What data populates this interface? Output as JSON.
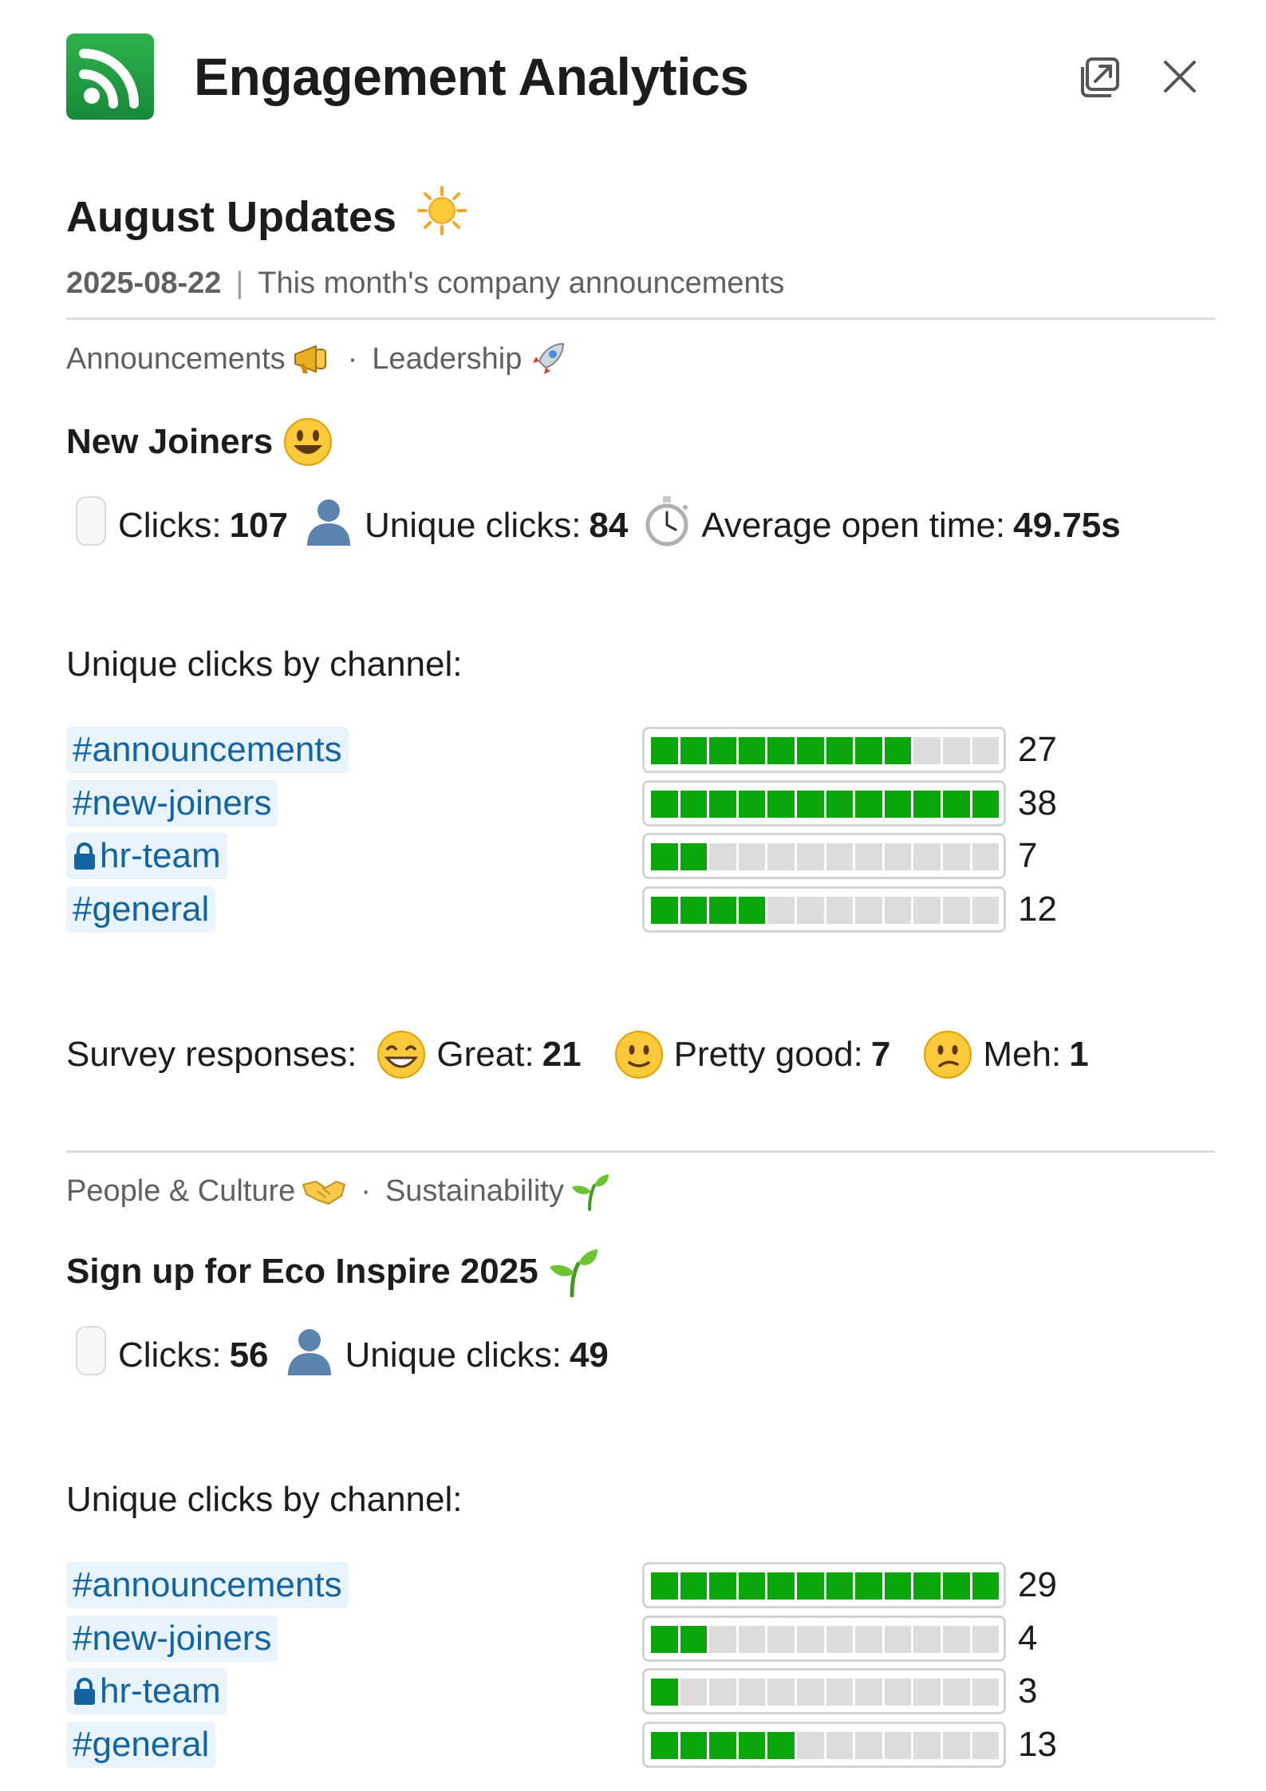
{
  "header": {
    "title": "Engagement Analytics",
    "logo_icon": "rss-feed-icon",
    "popout_icon": "popout-icon",
    "close_icon": "close-icon"
  },
  "section": {
    "title": "August Updates",
    "title_icon": "sun-icon",
    "date": "2025-08-22",
    "separator": "|",
    "subtitle": "This month's company announcements"
  },
  "items": [
    {
      "tags": [
        "Announcements",
        "Leadership"
      ],
      "tag_icons": [
        "megaphone-icon",
        "rocket-icon"
      ],
      "tag_separator": "·",
      "title": "New Joiners",
      "title_icon": "smiley-icon",
      "stats": {
        "clicks_label": "Clicks:",
        "clicks": "107",
        "unique_label": "Unique clicks:",
        "unique": "84",
        "open_label": "Average open time:",
        "open": "49.75s"
      },
      "channels_label": "Unique clicks by channel:",
      "channels": [
        {
          "name": "#announcements",
          "value": "27",
          "fill": 0.71,
          "private": false
        },
        {
          "name": "#new-joiners",
          "value": "38",
          "fill": 1.0,
          "private": false
        },
        {
          "name": "hr-team",
          "value": "7",
          "fill": 0.18,
          "private": true
        },
        {
          "name": "#general",
          "value": "12",
          "fill": 0.32,
          "private": false
        }
      ],
      "survey": {
        "label": "Survey responses:",
        "options": [
          {
            "label": "Great:",
            "count": "21",
            "icon": "grinning-face-icon"
          },
          {
            "label": "Pretty good:",
            "count": "7",
            "icon": "slightly-smiling-face-icon"
          },
          {
            "label": "Meh:",
            "count": "1",
            "icon": "confused-face-icon"
          }
        ]
      }
    },
    {
      "tags": [
        "People & Culture",
        "Sustainability"
      ],
      "tag_icons": [
        "handshake-icon",
        "seedling-icon"
      ],
      "tag_separator": "·",
      "title": "Sign up for Eco Inspire 2025",
      "title_icon": "seedling-icon",
      "stats": {
        "clicks_label": "Clicks:",
        "clicks": "56",
        "unique_label": "Unique clicks:",
        "unique": "49"
      },
      "channels_label": "Unique clicks by channel:",
      "channels": [
        {
          "name": "#announcements",
          "value": "29",
          "fill": 1.0,
          "private": false
        },
        {
          "name": "#new-joiners",
          "value": "4",
          "fill": 0.14,
          "private": false
        },
        {
          "name": "hr-team",
          "value": "3",
          "fill": 0.1,
          "private": true
        },
        {
          "name": "#general",
          "value": "13",
          "fill": 0.45,
          "private": false
        }
      ]
    }
  ],
  "colors": {
    "accent": "#1264a3",
    "chip_bg": "#e8f3fb",
    "bar_fill": "#0aa60a",
    "bar_empty": "#dcdcdc",
    "logo": "#1f9d45"
  }
}
